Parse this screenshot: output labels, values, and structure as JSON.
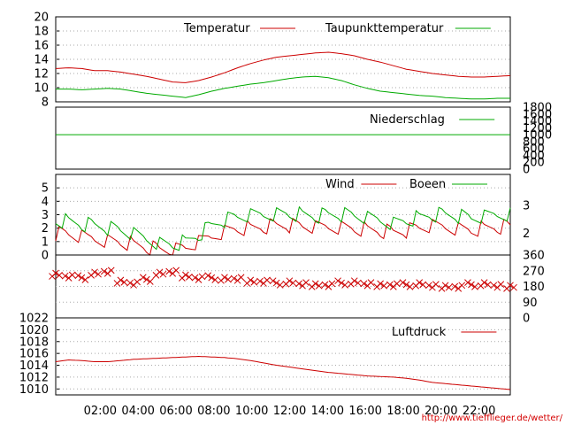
{
  "chart_data": [
    {
      "panel": "temperature",
      "type": "line",
      "ylim": [
        8,
        20
      ],
      "yticks": [
        "8",
        "10",
        "12",
        "14",
        "16",
        "18",
        "20"
      ],
      "series": [
        {
          "name": "Temperatur",
          "color": "#cc0000",
          "values": [
            12.7,
            12.8,
            12.7,
            12.4,
            12.4,
            12.2,
            11.9,
            11.6,
            11.2,
            10.8,
            10.7,
            11.0,
            11.5,
            12.1,
            12.8,
            13.4,
            13.9,
            14.3,
            14.5,
            14.7,
            14.9,
            15.0,
            14.8,
            14.5,
            14.0,
            13.6,
            13.1,
            12.6,
            12.3,
            12.0,
            11.8,
            11.6,
            11.5,
            11.5,
            11.6,
            11.7
          ]
        },
        {
          "name": "Taupunkttemperatur",
          "color": "#00aa00",
          "values": [
            9.8,
            9.8,
            9.7,
            9.8,
            9.9,
            9.8,
            9.5,
            9.2,
            9.0,
            8.8,
            8.6,
            9.0,
            9.5,
            9.9,
            10.2,
            10.5,
            10.7,
            11.0,
            11.3,
            11.5,
            11.6,
            11.4,
            11.0,
            10.4,
            9.9,
            9.5,
            9.3,
            9.1,
            8.9,
            8.8,
            8.6,
            8.5,
            8.4,
            8.4,
            8.5,
            8.5
          ]
        }
      ]
    },
    {
      "panel": "precipitation",
      "type": "line",
      "ylim": [
        0,
        1800
      ],
      "yticks": [
        "0",
        "200",
        "400",
        "600",
        "800",
        "1000",
        "1200",
        "1400",
        "1600",
        "1800"
      ],
      "series": [
        {
          "name": "Niederschlag",
          "color": "#00aa00",
          "values": [
            1000,
            1000
          ]
        }
      ]
    },
    {
      "panel": "wind",
      "type": "line",
      "ylim": [
        0,
        6
      ],
      "yticks": [
        "0",
        "1",
        "2",
        "3",
        "4",
        "5"
      ],
      "yticks_right": [
        "2",
        "3"
      ],
      "series": [
        {
          "name": "Wind",
          "color": "#cc0000",
          "values": [
            1.6,
            1.5,
            1.3,
            1.2,
            1.1,
            1.0,
            0.8,
            0.6,
            0.4,
            0.3,
            0.5,
            0.9,
            1.4,
            1.8,
            2.0,
            2.0,
            2.1,
            2.2,
            2.2,
            2.1,
            2.0,
            2.1,
            2.1,
            2.0,
            1.9,
            1.8,
            1.7,
            1.8,
            2.0,
            2.1,
            2.1,
            2.0,
            1.9,
            2.0,
            2.1,
            2.1
          ]
        },
        {
          "name": "Boeen",
          "color": "#00aa00",
          "values": [
            2.6,
            2.5,
            2.3,
            2.2,
            2.0,
            1.8,
            1.5,
            1.2,
            0.9,
            0.8,
            1.0,
            1.5,
            2.2,
            2.6,
            2.8,
            2.9,
            3.0,
            3.1,
            3.1,
            3.0,
            2.9,
            3.0,
            3.0,
            2.9,
            2.7,
            2.6,
            2.4,
            2.6,
            2.8,
            3.0,
            3.0,
            2.9,
            2.7,
            2.8,
            3.0,
            3.1
          ]
        }
      ]
    },
    {
      "panel": "wind-direction",
      "type": "scatter",
      "ylim": [
        0,
        360
      ],
      "yticks_right": [
        "0",
        "90",
        "180",
        "270",
        "360"
      ],
      "series": [
        {
          "color": "#cc0000",
          "values": [
            250,
            240,
            230,
            250,
            260,
            210,
            200,
            220,
            250,
            260,
            240,
            230,
            230,
            220,
            220,
            210,
            210,
            200,
            200,
            190,
            190,
            190,
            200,
            200,
            190,
            190,
            190,
            190,
            190,
            180,
            180,
            180,
            190,
            190,
            180,
            180
          ]
        }
      ]
    },
    {
      "panel": "pressure",
      "type": "line",
      "ylim": [
        1009,
        1022
      ],
      "yticks": [
        "1010",
        "1012",
        "1014",
        "1016",
        "1018",
        "1020",
        "1022"
      ],
      "series": [
        {
          "name": "Luftdruck",
          "color": "#cc0000",
          "values": [
            1014.6,
            1014.9,
            1014.8,
            1014.6,
            1014.6,
            1014.8,
            1015.0,
            1015.1,
            1015.2,
            1015.3,
            1015.4,
            1015.5,
            1015.4,
            1015.3,
            1015.1,
            1014.8,
            1014.4,
            1014.0,
            1013.7,
            1013.4,
            1013.1,
            1012.8,
            1012.6,
            1012.4,
            1012.2,
            1012.1,
            1012.0,
            1011.8,
            1011.5,
            1011.1,
            1010.9,
            1010.7,
            1010.5,
            1010.3,
            1010.1,
            1009.9
          ]
        }
      ]
    }
  ],
  "x_labels": [
    "02:00",
    "04:00",
    "06:00",
    "08:00",
    "10:00",
    "12:00",
    "14:00",
    "16:00",
    "18:00",
    "20:00",
    "22:00"
  ],
  "url": "http://www.tiefflieger.de/wetter/"
}
